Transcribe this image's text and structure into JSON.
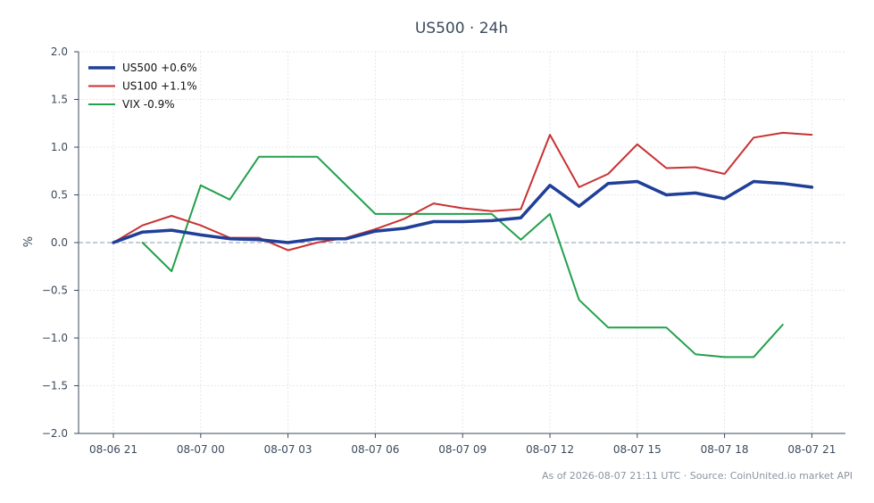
{
  "chart_data": {
    "type": "line",
    "title": "US500 · 24h",
    "xlabel": "",
    "ylabel": "%",
    "ylim": [
      -2.0,
      2.0
    ],
    "yticks": [
      "2.0",
      "1.5",
      "1.0",
      "0.5",
      "0.0",
      "−0.5",
      "−1.0",
      "−1.5",
      "−2.0"
    ],
    "ytick_values": [
      2.0,
      1.5,
      1.0,
      0.5,
      0.0,
      -0.5,
      -1.0,
      -1.5,
      -2.0
    ],
    "xticks": [
      "08-06 21",
      "08-07 00",
      "08-07 03",
      "08-07 06",
      "08-07 09",
      "08-07 12",
      "08-07 15",
      "08-07 18",
      "08-07 21"
    ],
    "x": [
      "08-06 21:00",
      "08-06 22:00",
      "08-06 23:00",
      "08-07 00:00",
      "08-07 01:00",
      "08-07 02:00",
      "08-07 03:00",
      "08-07 04:00",
      "08-07 05:00",
      "08-07 06:00",
      "08-07 07:00",
      "08-07 08:00",
      "08-07 09:00",
      "08-07 10:00",
      "08-07 11:00",
      "08-07 12:00",
      "08-07 13:00",
      "08-07 14:00",
      "08-07 15:00",
      "08-07 16:00",
      "08-07 17:00",
      "08-07 18:00",
      "08-07 19:00",
      "08-07 20:00",
      "08-07 21:00"
    ],
    "series": [
      {
        "name": "US500 +0.6%",
        "color": "#1f3f99",
        "values": [
          0.0,
          0.11,
          0.13,
          0.08,
          0.04,
          0.03,
          0.0,
          0.04,
          0.04,
          0.12,
          0.15,
          0.22,
          0.22,
          0.23,
          0.26,
          0.6,
          0.38,
          0.62,
          0.64,
          0.5,
          0.52,
          0.46,
          0.64,
          0.62,
          0.58
        ]
      },
      {
        "name": "US100 +1.1%",
        "color": "#c83232",
        "values": [
          0.0,
          0.18,
          0.28,
          0.18,
          0.05,
          0.05,
          -0.08,
          0.0,
          0.05,
          0.14,
          0.25,
          0.41,
          0.36,
          0.33,
          0.35,
          1.13,
          0.58,
          0.72,
          1.03,
          0.78,
          0.79,
          0.72,
          1.1,
          1.15,
          1.13
        ]
      },
      {
        "name": "VIX -0.9%",
        "color": "#22a04b",
        "values": [
          null,
          0.0,
          -0.3,
          0.6,
          0.45,
          0.9,
          0.9,
          0.9,
          0.6,
          0.3,
          0.3,
          0.3,
          0.3,
          0.3,
          0.03,
          0.3,
          -0.6,
          -0.89,
          -0.89,
          -0.89,
          -1.17,
          -1.2,
          -1.2,
          -0.86,
          null
        ]
      }
    ],
    "zero_line": true,
    "grid": true,
    "legend": "top-left",
    "footer": "As of 2026-08-07 21:11 UTC · Source: CoinUnited.io market API"
  }
}
